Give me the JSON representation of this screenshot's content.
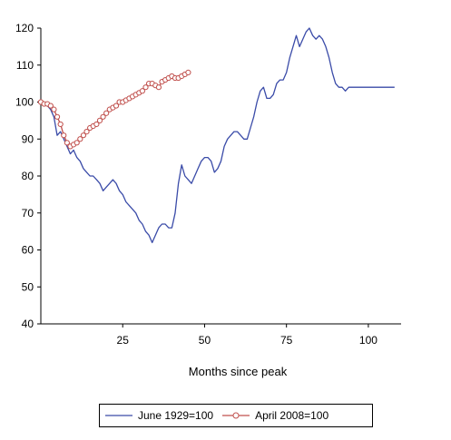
{
  "chart_data": {
    "type": "line",
    "title": "",
    "xlabel": "Months since peak",
    "ylabel": "",
    "xlim": [
      0,
      110
    ],
    "ylim": [
      40,
      120
    ],
    "xticks": [
      25,
      50,
      75,
      100
    ],
    "yticks": [
      40,
      50,
      60,
      70,
      80,
      90,
      100,
      110,
      120
    ],
    "grid": false,
    "legend_position": "bottom",
    "series": [
      {
        "name": "June 1929=100",
        "color": "#3a4ba8",
        "marker": "none",
        "x": [
          0,
          1,
          2,
          3,
          4,
          5,
          6,
          7,
          8,
          9,
          10,
          11,
          12,
          13,
          14,
          15,
          16,
          17,
          18,
          19,
          20,
          21,
          22,
          23,
          24,
          25,
          26,
          27,
          28,
          29,
          30,
          31,
          32,
          33,
          34,
          35,
          36,
          37,
          38,
          39,
          40,
          41,
          42,
          43,
          44,
          45,
          46,
          47,
          48,
          49,
          50,
          51,
          52,
          53,
          54,
          55,
          56,
          57,
          58,
          59,
          60,
          61,
          62,
          63,
          64,
          65,
          66,
          67,
          68,
          69,
          70,
          71,
          72,
          73,
          74,
          75,
          76,
          77,
          78,
          79,
          80,
          81,
          82,
          83,
          84,
          85,
          86,
          87,
          88,
          89,
          90,
          91,
          92,
          93,
          94,
          95,
          96,
          97,
          98,
          99,
          100,
          101,
          102,
          103,
          104,
          105,
          106,
          107,
          108
        ],
        "values": [
          100,
          99.5,
          99,
          98,
          96,
          91,
          92,
          90,
          88,
          86,
          87,
          85,
          84,
          82,
          81,
          80,
          80,
          79,
          78,
          76,
          77,
          78,
          79,
          78,
          76,
          75,
          73,
          72,
          71,
          70,
          68,
          67,
          65,
          64,
          62,
          64,
          66,
          67,
          67,
          66,
          66,
          70,
          78,
          83,
          80,
          79,
          78,
          80,
          82,
          84,
          85,
          85,
          84,
          81,
          82,
          84,
          88,
          90,
          91,
          92,
          92,
          91,
          90,
          90,
          93,
          96,
          100,
          103,
          104,
          101,
          101,
          102,
          105,
          106,
          106,
          108,
          112,
          115,
          118,
          115,
          117,
          119,
          120,
          118,
          117,
          118,
          117,
          115,
          112,
          108,
          105,
          104,
          104,
          103,
          104,
          104,
          104,
          104,
          104,
          104,
          104,
          104,
          104,
          104,
          104,
          104,
          104,
          104,
          104
        ],
        "y_note": ""
      },
      {
        "name": "April 2008=100",
        "color": "#c0504d",
        "marker": "circle",
        "x": [
          0,
          1,
          2,
          3,
          4,
          5,
          6,
          7,
          8,
          9,
          10,
          11,
          12,
          13,
          14,
          15,
          16,
          17,
          18,
          19,
          20,
          21,
          22,
          23,
          24,
          25,
          26,
          27,
          28,
          29,
          30,
          31,
          32,
          33,
          34,
          35,
          36,
          37,
          38,
          39,
          40,
          41,
          42,
          43,
          44,
          45
        ],
        "values": [
          100,
          99.5,
          99.5,
          99,
          98,
          96,
          94,
          91,
          89,
          88,
          88.5,
          89,
          90,
          91,
          92,
          93,
          93.5,
          94,
          95,
          96,
          97,
          98,
          98.5,
          99,
          100,
          100,
          100.5,
          101,
          101.5,
          102,
          102.5,
          103,
          104,
          105,
          105,
          104.5,
          104,
          105.5,
          106,
          106.5,
          107,
          106.5,
          106.5,
          107,
          107.5,
          108
        ]
      }
    ]
  }
}
